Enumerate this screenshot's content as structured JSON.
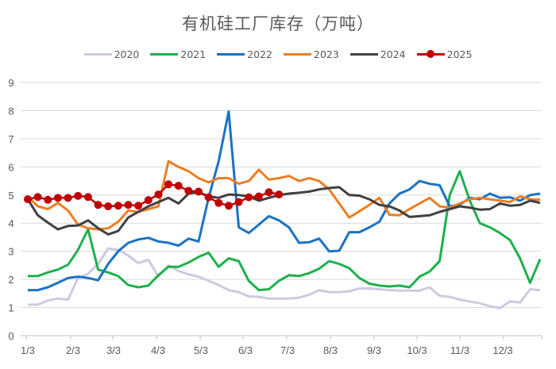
{
  "chart_data": {
    "type": "line",
    "title": "有机硅工厂库存（万吨）",
    "xlabel": "",
    "ylabel": "",
    "ylim": [
      0,
      9
    ],
    "yticks": [
      "0",
      "1",
      "2",
      "3",
      "4",
      "5",
      "6",
      "7",
      "8",
      "9"
    ],
    "xticks": [
      "1/3",
      "2/3",
      "3/3",
      "4/3",
      "5/3",
      "6/3",
      "7/3",
      "8/3",
      "9/3",
      "10/3",
      "11/3",
      "12/3"
    ],
    "grid": true,
    "legend_position": "top",
    "series": [
      {
        "name": "2020",
        "color": "#d0c8e0",
        "markers": false,
        "values": [
          1.1,
          1.1,
          1.25,
          1.32,
          1.28,
          2.05,
          2.2,
          2.55,
          3.1,
          3.05,
          2.85,
          2.58,
          2.7,
          2.1,
          2.5,
          2.3,
          2.18,
          2.1,
          1.95,
          1.8,
          1.62,
          1.55,
          1.4,
          1.38,
          1.32,
          1.32,
          1.32,
          1.35,
          1.45,
          1.62,
          1.55,
          1.55,
          1.58,
          1.68,
          1.68,
          1.65,
          1.62,
          1.6,
          1.6,
          1.6,
          1.72,
          1.42,
          1.38,
          1.28,
          1.22,
          1.15,
          1.05,
          0.98,
          1.22,
          1.18,
          1.65,
          1.62
        ]
      },
      {
        "name": "2021",
        "color": "#1db14b",
        "markers": false,
        "values": [
          2.12,
          2.12,
          2.25,
          2.35,
          2.52,
          3.05,
          3.78,
          2.35,
          2.25,
          2.12,
          1.8,
          1.72,
          1.78,
          2.15,
          2.45,
          2.45,
          2.6,
          2.8,
          2.95,
          2.45,
          2.75,
          2.65,
          1.95,
          1.62,
          1.65,
          1.95,
          2.15,
          2.12,
          2.22,
          2.38,
          2.65,
          2.55,
          2.4,
          2.05,
          1.85,
          1.78,
          1.75,
          1.78,
          1.72,
          2.1,
          2.28,
          2.65,
          5.0,
          5.85,
          4.8,
          4.0,
          3.85,
          3.65,
          3.4,
          2.75,
          1.88,
          2.72
        ]
      },
      {
        "name": "2022",
        "color": "#1a72c4",
        "markers": false,
        "values": [
          1.62,
          1.62,
          1.72,
          1.88,
          2.05,
          2.1,
          2.05,
          1.97,
          2.55,
          3.0,
          3.3,
          3.42,
          3.48,
          3.35,
          3.3,
          3.2,
          3.45,
          3.35,
          4.9,
          6.2,
          7.97,
          3.85,
          3.65,
          3.95,
          4.25,
          4.1,
          3.85,
          3.3,
          3.32,
          3.45,
          3.0,
          3.02,
          3.68,
          3.68,
          3.85,
          4.05,
          4.7,
          5.05,
          5.2,
          5.5,
          5.4,
          5.35,
          4.6,
          4.65,
          4.9,
          4.85,
          5.05,
          4.9,
          4.92,
          4.8,
          5.0,
          5.05
        ]
      },
      {
        "name": "2023",
        "color": "#ee7d22",
        "markers": false,
        "values": [
          4.95,
          4.6,
          4.5,
          4.72,
          4.45,
          3.95,
          3.82,
          3.78,
          3.82,
          4.05,
          4.45,
          4.4,
          4.5,
          4.6,
          6.2,
          6.0,
          5.85,
          5.6,
          5.45,
          5.6,
          5.6,
          5.4,
          5.5,
          5.9,
          5.55,
          5.6,
          5.68,
          5.5,
          5.6,
          5.5,
          5.2,
          4.7,
          4.2,
          4.42,
          4.65,
          4.9,
          4.3,
          4.28,
          4.5,
          4.7,
          4.9,
          4.6,
          4.55,
          4.7,
          4.85,
          4.9,
          4.85,
          4.8,
          4.75,
          4.95,
          4.85,
          4.83
        ]
      },
      {
        "name": "2024",
        "color": "#404040",
        "markers": false,
        "values": [
          4.85,
          4.28,
          4.02,
          3.78,
          3.9,
          3.92,
          4.1,
          3.82,
          3.6,
          3.72,
          4.2,
          4.4,
          4.6,
          4.75,
          4.9,
          4.7,
          5.05,
          5.1,
          4.95,
          4.9,
          5.02,
          5.0,
          4.95,
          4.8,
          4.9,
          5.0,
          5.05,
          5.08,
          5.12,
          5.2,
          5.25,
          5.28,
          5.0,
          4.98,
          4.85,
          4.65,
          4.6,
          4.45,
          4.22,
          4.25,
          4.28,
          4.4,
          4.5,
          4.6,
          4.55,
          4.48,
          4.5,
          4.7,
          4.62,
          4.65,
          4.8,
          4.72
        ]
      },
      {
        "name": "2025",
        "color": "#c00000",
        "markers": true,
        "values": [
          4.85,
          4.93,
          4.83,
          4.9,
          4.9,
          4.97,
          4.93,
          4.65,
          4.6,
          4.62,
          4.65,
          4.62,
          4.82,
          5.02,
          5.38,
          5.33,
          5.15,
          5.12,
          4.92,
          4.72,
          4.62,
          4.75,
          4.92,
          4.95,
          5.1,
          5.02
        ]
      }
    ]
  }
}
